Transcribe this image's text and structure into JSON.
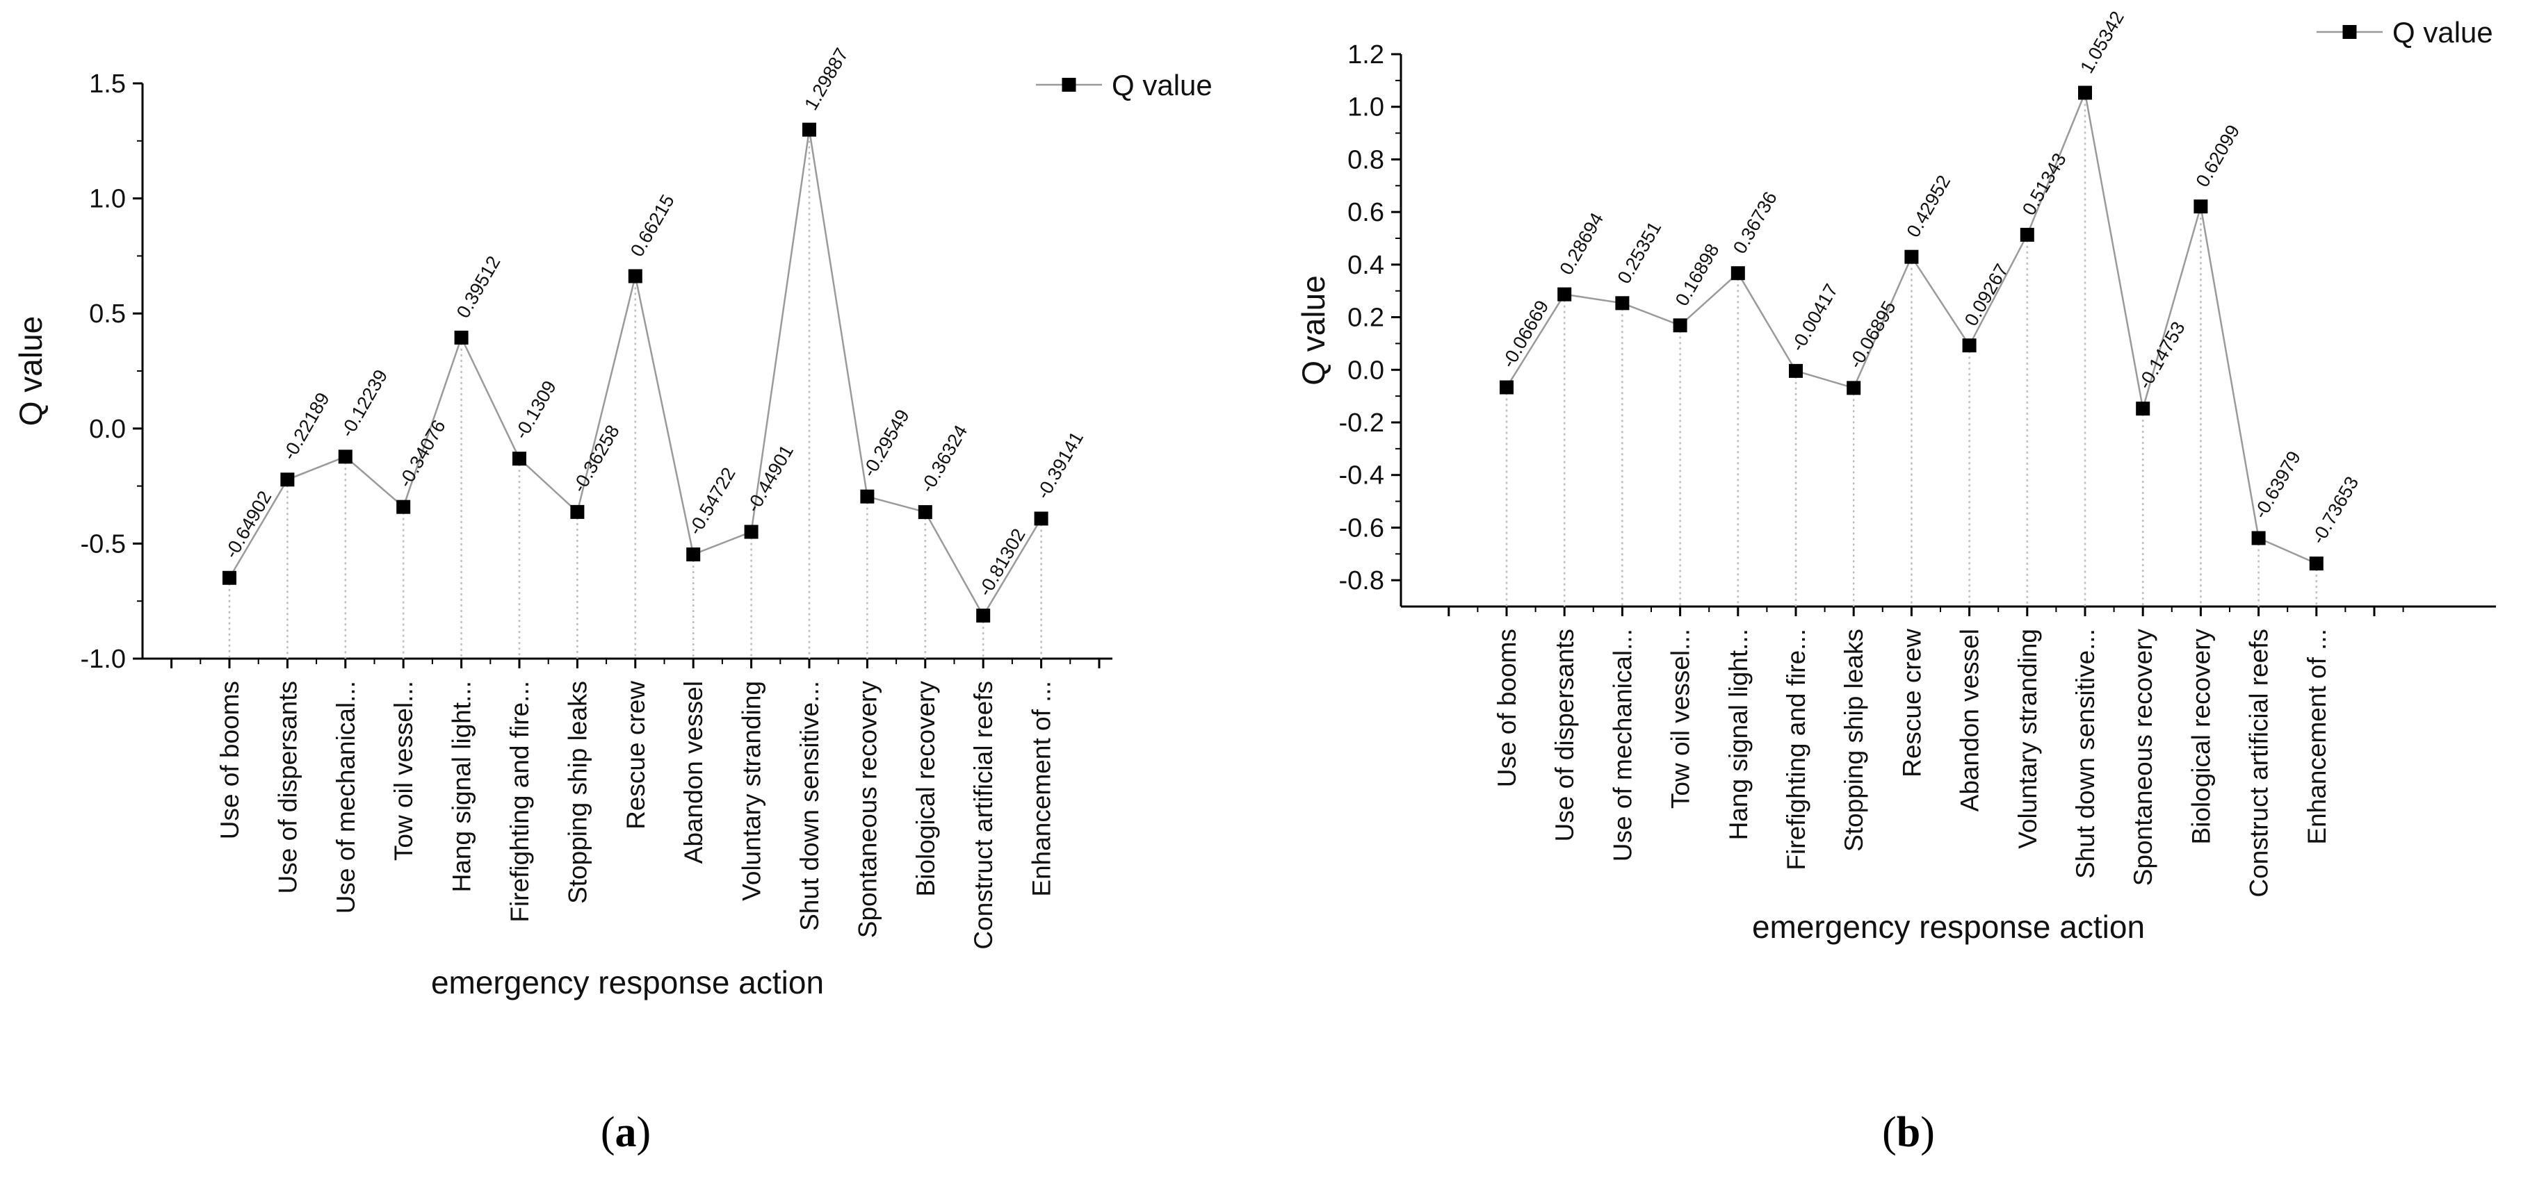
{
  "chart_data": [
    {
      "type": "line",
      "panel_label": "(a)",
      "panel_letter": "a",
      "title": "",
      "xlabel": "emergency response action",
      "ylabel": "Q value",
      "legend": "Q value",
      "legend_position": "top-right",
      "grid": false,
      "ylim": [
        -1.0,
        1.5
      ],
      "yticks": [
        -1.0,
        -0.5,
        0.0,
        0.5,
        1.0,
        1.5
      ],
      "ytick_labels": [
        "-1.0",
        "-0.5",
        "0.0",
        "0.5",
        "1.0",
        "1.5"
      ],
      "categories": [
        "Use of booms",
        "Use of dispersants",
        "Use of mechanical...",
        "Tow oil vessel...",
        "Hang signal light...",
        "Firefighting and fire...",
        "Stopping ship leaks",
        "Rescue crew",
        "Abandon vessel",
        "Voluntary stranding",
        "Shut down sensitive...",
        "Spontaneous recovery",
        "Biological recovery",
        "Construct artificial reefs",
        "Enhancement of ..."
      ],
      "values": [
        -0.64902,
        -0.22189,
        -0.12239,
        -0.34076,
        0.39512,
        -0.1309,
        -0.36258,
        0.66215,
        -0.54722,
        -0.44901,
        1.29887,
        -0.29549,
        -0.36324,
        -0.81302,
        -0.39141
      ],
      "value_labels": [
        "-0.64902",
        "-0.22189",
        "-0.12239",
        "-0.34076",
        "0.39512",
        "-0.1309",
        "-0.36258",
        "0.66215",
        "-0.54722",
        "-0.44901",
        "1.29887",
        "-0.29549",
        "-0.36324",
        "-0.81302",
        "-0.39141"
      ],
      "colors": {
        "line": "#9a9a9a",
        "marker": "#000000",
        "drop_line": "#bdbdbd",
        "axis": "#000000"
      }
    },
    {
      "type": "line",
      "panel_label": "(b)",
      "panel_letter": "b",
      "title": "",
      "xlabel": "emergency response action",
      "ylabel": "Q value",
      "legend": "Q value",
      "legend_position": "top-right",
      "grid": false,
      "ylim": [
        -0.9,
        1.2
      ],
      "yticks": [
        -0.8,
        -0.6,
        -0.4,
        -0.2,
        0.0,
        0.2,
        0.4,
        0.6,
        0.8,
        1.0,
        1.2
      ],
      "ytick_labels": [
        "-0.8",
        "-0.6",
        "-0.4",
        "-0.2",
        "0.0",
        "0.2",
        "0.4",
        "0.6",
        "0.8",
        "1.0",
        "1.2"
      ],
      "categories": [
        "Use of booms",
        "Use of dispersants",
        "Use of mechanical...",
        "Tow oil vessel...",
        "Hang signal light...",
        "Firefighting and fire...",
        "Stopping ship leaks",
        "Rescue crew",
        "Abandon vessel",
        "Voluntary stranding",
        "Shut down sensitive...",
        "Spontaneous recovery",
        "Biological recovery",
        "Construct artificial reefs",
        "Enhancement of ..."
      ],
      "values": [
        -0.06669,
        0.28694,
        0.25351,
        0.16898,
        0.36736,
        -0.00417,
        -0.06895,
        0.42952,
        0.09267,
        0.51343,
        1.05342,
        -0.14753,
        0.62099,
        -0.63979,
        -0.73653
      ],
      "value_labels": [
        "-0.06669",
        "0.28694",
        "0.25351",
        "0.16898",
        "0.36736",
        "-0.00417",
        "-0.06895",
        "0.42952",
        "0.09267",
        "0.51343",
        "1.05342",
        "-0.14753",
        "0.62099",
        "-0.63979",
        "-0.73653"
      ],
      "colors": {
        "line": "#9a9a9a",
        "marker": "#000000",
        "drop_line": "#bdbdbd",
        "axis": "#000000"
      }
    }
  ]
}
